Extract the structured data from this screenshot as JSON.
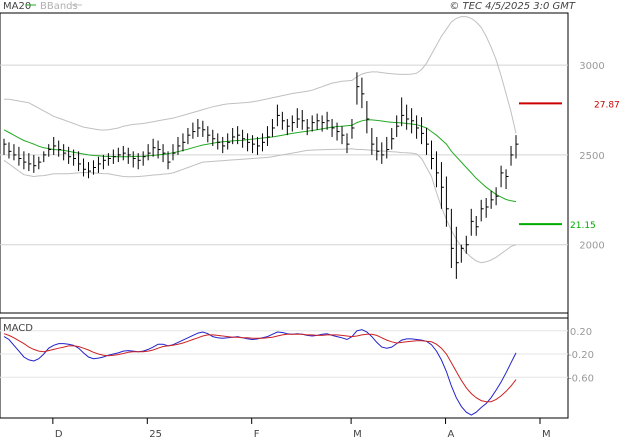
{
  "header": {
    "ma_label": "MA20",
    "bb_label": "BBands",
    "copyright": "© TEC 4/5/2025 3:0 GMT"
  },
  "macd": {
    "label": "MACD"
  },
  "colors": {
    "price_bar": "#000000",
    "ma": "#22aa22",
    "bands": "#c0c0c0",
    "macd_line": "#2222cc",
    "signal_line": "#cc2222",
    "resistance": "#cc0000",
    "support": "#00aa00"
  },
  "chart_data": [
    {
      "type": "line",
      "title": "",
      "x_tick_labels": [
        "D",
        "25",
        "F",
        "M",
        "A",
        "M"
      ],
      "y_tick_labels": [
        "3000",
        "2500",
        "2000"
      ],
      "ylim": [
        1620,
        3290
      ],
      "grid": true,
      "legend": "top-left",
      "bars": {
        "high": [
          2590,
          2570,
          2560,
          2545,
          2520,
          2510,
          2500,
          2490,
          2520,
          2560,
          2600,
          2580,
          2560,
          2545,
          2530,
          2520,
          2480,
          2460,
          2470,
          2490,
          2500,
          2510,
          2530,
          2540,
          2550,
          2540,
          2520,
          2510,
          2520,
          2560,
          2590,
          2580,
          2560,
          2520,
          2560,
          2600,
          2620,
          2650,
          2680,
          2700,
          2690,
          2660,
          2640,
          2620,
          2600,
          2620,
          2650,
          2660,
          2640,
          2620,
          2610,
          2600,
          2620,
          2660,
          2700,
          2780,
          2740,
          2700,
          2720,
          2760,
          2750,
          2700,
          2720,
          2730,
          2720,
          2740,
          2700,
          2680,
          2660,
          2620,
          2700,
          2960,
          2930,
          2800,
          2650,
          2600,
          2570,
          2600,
          2650,
          2720,
          2820,
          2780,
          2760,
          2720,
          2710,
          2650,
          2580,
          2520,
          2460,
          2380,
          2200,
          2100,
          2000,
          2050,
          2200,
          2160,
          2250,
          2260,
          2300,
          2320,
          2440,
          2420,
          2550,
          2610
        ],
        "low": [
          2500,
          2480,
          2470,
          2440,
          2420,
          2410,
          2400,
          2420,
          2460,
          2490,
          2500,
          2490,
          2470,
          2450,
          2440,
          2410,
          2380,
          2370,
          2390,
          2400,
          2420,
          2440,
          2450,
          2460,
          2470,
          2450,
          2430,
          2420,
          2440,
          2470,
          2490,
          2480,
          2460,
          2420,
          2470,
          2500,
          2520,
          2560,
          2590,
          2600,
          2600,
          2570,
          2550,
          2530,
          2510,
          2530,
          2560,
          2560,
          2540,
          2520,
          2510,
          2500,
          2520,
          2550,
          2600,
          2660,
          2640,
          2610,
          2630,
          2650,
          2640,
          2610,
          2630,
          2640,
          2630,
          2640,
          2600,
          2580,
          2560,
          2510,
          2590,
          2780,
          2760,
          2620,
          2500,
          2470,
          2450,
          2480,
          2530,
          2600,
          2660,
          2640,
          2620,
          2590,
          2560,
          2500,
          2420,
          2320,
          2200,
          2100,
          1870,
          1810,
          1900,
          1950,
          2050,
          2050,
          2130,
          2150,
          2200,
          2220,
          2320,
          2310,
          2440,
          2480
        ],
        "close": [
          2560,
          2520,
          2500,
          2480,
          2460,
          2450,
          2440,
          2460,
          2500,
          2530,
          2550,
          2530,
          2510,
          2490,
          2480,
          2450,
          2420,
          2410,
          2430,
          2450,
          2470,
          2480,
          2490,
          2500,
          2510,
          2500,
          2480,
          2470,
          2490,
          2510,
          2540,
          2530,
          2510,
          2460,
          2510,
          2550,
          2570,
          2610,
          2630,
          2650,
          2640,
          2610,
          2590,
          2570,
          2550,
          2570,
          2600,
          2610,
          2590,
          2570,
          2560,
          2550,
          2570,
          2600,
          2650,
          2720,
          2690,
          2660,
          2680,
          2700,
          2690,
          2650,
          2680,
          2690,
          2680,
          2690,
          2650,
          2630,
          2610,
          2560,
          2650,
          2880,
          2840,
          2700,
          2560,
          2520,
          2500,
          2530,
          2590,
          2660,
          2720,
          2700,
          2690,
          2650,
          2620,
          2560,
          2480,
          2400,
          2320,
          2200,
          1980,
          1900,
          1980,
          2000,
          2130,
          2100,
          2200,
          2210,
          2250,
          2270,
          2400,
          2380,
          2500,
          2560
        ]
      },
      "ma20": [
        2640,
        2625,
        2610,
        2595,
        2580,
        2570,
        2560,
        2548,
        2540,
        2535,
        2530,
        2528,
        2525,
        2520,
        2515,
        2510,
        2505,
        2500,
        2497,
        2495,
        2493,
        2492,
        2491,
        2490,
        2490,
        2490,
        2491,
        2492,
        2493,
        2495,
        2497,
        2500,
        2503,
        2507,
        2512,
        2518,
        2525,
        2532,
        2540,
        2548,
        2555,
        2560,
        2565,
        2570,
        2573,
        2575,
        2578,
        2580,
        2582,
        2585,
        2588,
        2591,
        2594,
        2597,
        2600,
        2605,
        2610,
        2615,
        2620,
        2624,
        2628,
        2632,
        2636,
        2640,
        2645,
        2650,
        2655,
        2658,
        2660,
        2662,
        2665,
        2680,
        2690,
        2695,
        2695,
        2692,
        2689,
        2685,
        2682,
        2680,
        2678,
        2675,
        2672,
        2668,
        2660,
        2650,
        2630,
        2610,
        2585,
        2560,
        2520,
        2490,
        2460,
        2430,
        2400,
        2370,
        2345,
        2320,
        2300,
        2280,
        2265,
        2252,
        2245,
        2240
      ],
      "bb_upper": [
        2810,
        2810,
        2805,
        2800,
        2795,
        2790,
        2775,
        2760,
        2745,
        2730,
        2715,
        2705,
        2695,
        2685,
        2675,
        2665,
        2655,
        2650,
        2645,
        2640,
        2638,
        2640,
        2645,
        2650,
        2660,
        2665,
        2670,
        2672,
        2675,
        2680,
        2685,
        2690,
        2695,
        2700,
        2705,
        2712,
        2720,
        2728,
        2736,
        2744,
        2752,
        2760,
        2768,
        2774,
        2780,
        2784,
        2786,
        2788,
        2790,
        2792,
        2796,
        2800,
        2806,
        2812,
        2818,
        2824,
        2830,
        2836,
        2842,
        2846,
        2850,
        2854,
        2860,
        2870,
        2880,
        2890,
        2900,
        2905,
        2910,
        2912,
        2915,
        2935,
        2950,
        2958,
        2962,
        2962,
        2958,
        2955,
        2952,
        2950,
        2948,
        2948,
        2950,
        2955,
        2975,
        3010,
        3060,
        3110,
        3160,
        3200,
        3240,
        3260,
        3270,
        3270,
        3260,
        3240,
        3210,
        3160,
        3100,
        3030,
        2940,
        2840,
        2740,
        2620
      ],
      "bb_lower": [
        2470,
        2450,
        2430,
        2410,
        2390,
        2385,
        2380,
        2383,
        2385,
        2390,
        2395,
        2395,
        2395,
        2395,
        2398,
        2400,
        2402,
        2402,
        2400,
        2398,
        2396,
        2395,
        2390,
        2385,
        2380,
        2378,
        2378,
        2380,
        2382,
        2385,
        2388,
        2390,
        2393,
        2395,
        2400,
        2410,
        2420,
        2430,
        2440,
        2450,
        2460,
        2462,
        2464,
        2466,
        2468,
        2470,
        2472,
        2474,
        2476,
        2478,
        2480,
        2482,
        2484,
        2486,
        2490,
        2495,
        2500,
        2505,
        2510,
        2515,
        2520,
        2525,
        2527,
        2528,
        2529,
        2530,
        2530,
        2531,
        2532,
        2533,
        2534,
        2530,
        2530,
        2528,
        2526,
        2524,
        2522,
        2520,
        2518,
        2516,
        2513,
        2512,
        2510,
        2505,
        2480,
        2430,
        2380,
        2290,
        2210,
        2140,
        2080,
        2030,
        1990,
        1955,
        1930,
        1910,
        1900,
        1905,
        1915,
        1930,
        1950,
        1970,
        1990,
        2000
      ]
    },
    {
      "type": "line",
      "title": "MACD",
      "y_tick_labels": [
        "0.20",
        "-0.20",
        "-0.60"
      ],
      "ylim": [
        -1.3,
        0.42
      ],
      "series": [
        {
          "values": [
            0.1,
            0.05,
            -0.05,
            -0.15,
            -0.25,
            -0.3,
            -0.32,
            -0.28,
            -0.2,
            -0.1,
            -0.05,
            -0.02,
            -0.02,
            -0.03,
            -0.05,
            -0.1,
            -0.18,
            -0.25,
            -0.28,
            -0.27,
            -0.25,
            -0.22,
            -0.2,
            -0.18,
            -0.15,
            -0.14,
            -0.15,
            -0.16,
            -0.15,
            -0.12,
            -0.08,
            -0.03,
            -0.03,
            -0.06,
            -0.04,
            0.0,
            0.04,
            0.08,
            0.12,
            0.16,
            0.18,
            0.15,
            0.1,
            0.08,
            0.07,
            0.08,
            0.09,
            0.1,
            0.08,
            0.06,
            0.05,
            0.06,
            0.08,
            0.1,
            0.14,
            0.18,
            0.17,
            0.15,
            0.14,
            0.15,
            0.14,
            0.12,
            0.11,
            0.12,
            0.14,
            0.15,
            0.12,
            0.1,
            0.08,
            0.05,
            0.1,
            0.2,
            0.22,
            0.18,
            0.1,
            0.0,
            -0.08,
            -0.1,
            -0.08,
            -0.02,
            0.04,
            0.06,
            0.06,
            0.05,
            0.04,
            0.02,
            -0.04,
            -0.15,
            -0.3,
            -0.5,
            -0.75,
            -0.95,
            -1.1,
            -1.2,
            -1.25,
            -1.2,
            -1.12,
            -1.05,
            -0.95,
            -0.82,
            -0.68,
            -0.52,
            -0.35,
            -0.18
          ]
        },
        {
          "values": [
            0.15,
            0.12,
            0.08,
            0.03,
            -0.02,
            -0.08,
            -0.12,
            -0.15,
            -0.16,
            -0.14,
            -0.12,
            -0.1,
            -0.08,
            -0.06,
            -0.06,
            -0.07,
            -0.1,
            -0.13,
            -0.17,
            -0.2,
            -0.22,
            -0.23,
            -0.22,
            -0.21,
            -0.19,
            -0.17,
            -0.16,
            -0.16,
            -0.16,
            -0.15,
            -0.13,
            -0.1,
            -0.07,
            -0.06,
            -0.05,
            -0.03,
            -0.01,
            0.02,
            0.05,
            0.08,
            0.11,
            0.13,
            0.13,
            0.12,
            0.11,
            0.1,
            0.09,
            0.09,
            0.08,
            0.08,
            0.07,
            0.07,
            0.07,
            0.08,
            0.09,
            0.11,
            0.13,
            0.14,
            0.14,
            0.14,
            0.14,
            0.13,
            0.13,
            0.12,
            0.12,
            0.13,
            0.13,
            0.13,
            0.12,
            0.11,
            0.1,
            0.11,
            0.13,
            0.14,
            0.14,
            0.12,
            0.08,
            0.04,
            0.01,
            -0.01,
            0.0,
            0.01,
            0.02,
            0.03,
            0.03,
            0.02,
            0.01,
            -0.03,
            -0.1,
            -0.2,
            -0.35,
            -0.5,
            -0.65,
            -0.78,
            -0.88,
            -0.95,
            -1.0,
            -1.02,
            -1.02,
            -0.98,
            -0.92,
            -0.84,
            -0.75,
            -0.64
          ]
        }
      ]
    }
  ],
  "levels": {
    "resistance": {
      "label": "27.87",
      "value": 2787
    },
    "support": {
      "label": "21.15",
      "value": 2115
    }
  }
}
